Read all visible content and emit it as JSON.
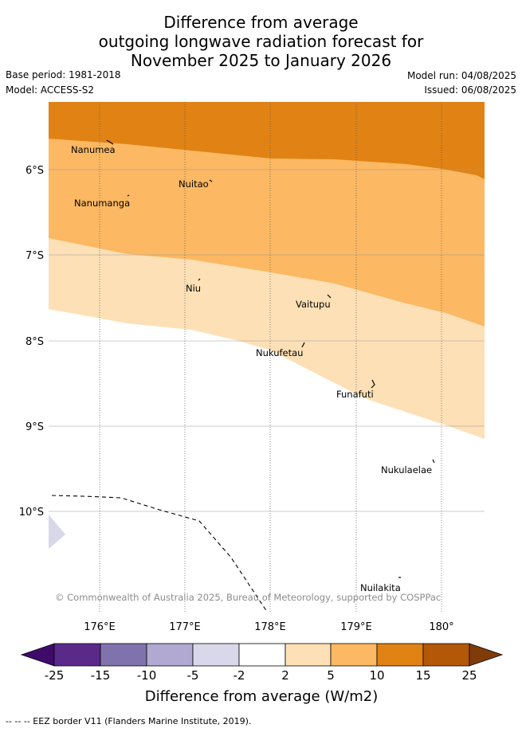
{
  "title": {
    "line1": "Difference from average",
    "line2": "outgoing longwave radiation forecast for",
    "line3": "November 2025 to January 2026"
  },
  "meta": {
    "base_period": "Base period: 1981-2018",
    "model": "Model: ACCESS-S2",
    "model_run": "Model run: 04/08/2025",
    "issued": "Issued: 06/08/2025"
  },
  "map": {
    "lon_labels": [
      "176°E",
      "177°E",
      "178°E",
      "179°E",
      "180°"
    ],
    "lat_labels": [
      "6°S",
      "7°S",
      "8°S",
      "9°S",
      "10°S"
    ],
    "places": [
      "Nanumea",
      "Nuitao",
      "Nanumanga",
      "Niu",
      "Vaitupu",
      "Nukufetau",
      "Funafuti",
      "Nukulaelae",
      "Nuilakita"
    ],
    "copyright": "© Commonwealth of Australia 2025, Bureau of Meteorology, supported by COSPPac"
  },
  "colorbar": {
    "ticks": [
      "-25",
      "-15",
      "-10",
      "-5",
      "-2",
      "2",
      "5",
      "10",
      "15",
      "25"
    ],
    "colors": [
      "#3f0b6b",
      "#5a2a8a",
      "#8073ad",
      "#b1a9d1",
      "#d8d8ea",
      "#ffffff",
      "#fde0b6",
      "#fcb862",
      "#e08214",
      "#b35806",
      "#7f3b08"
    ],
    "label": "Difference from average (W/m2)"
  },
  "footer": "-- -- -- EEZ border V11 (Flanders Marine Institute, 2019)."
}
